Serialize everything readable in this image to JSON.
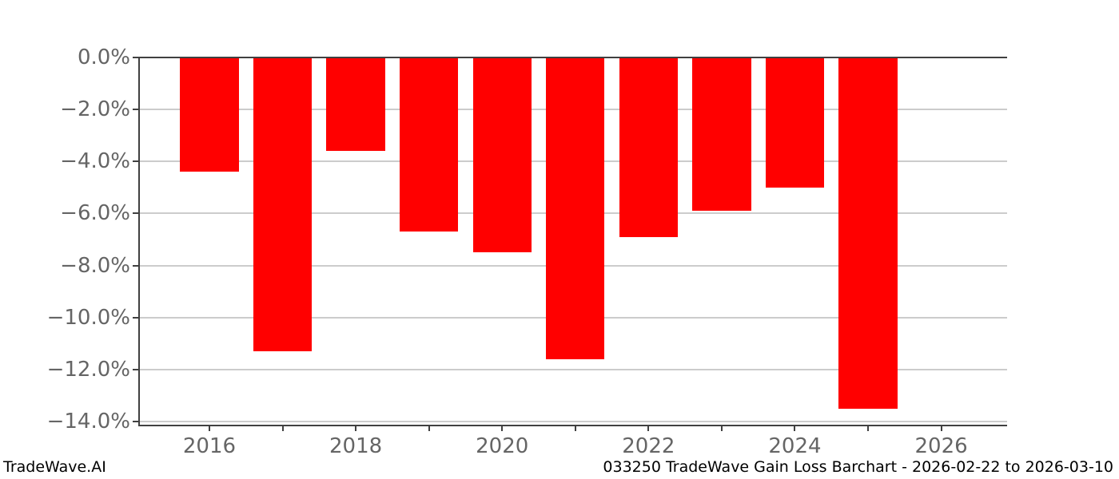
{
  "footer": {
    "brand": "TradeWave.AI",
    "title": "033250 TradeWave Gain Loss Barchart - 2026-02-22 to 2026-03-10"
  },
  "chart_data": {
    "type": "bar",
    "title": "033250 TradeWave Gain Loss Barchart - 2026-02-22 to 2026-03-10",
    "categories": [
      2016,
      2017,
      2018,
      2019,
      2020,
      2021,
      2022,
      2023,
      2024,
      2025
    ],
    "values": [
      -4.4,
      -11.3,
      -3.6,
      -6.7,
      -7.5,
      -11.6,
      -6.9,
      -5.9,
      -5.0,
      -13.5
    ],
    "xlabel": "",
    "ylabel": "",
    "xlim": [
      2015.05,
      2026.9
    ],
    "ylim": [
      -14.15,
      0
    ],
    "ytick_values": [
      0,
      -2,
      -4,
      -6,
      -8,
      -10,
      -12,
      -14
    ],
    "ytick_labels": [
      "0.0%",
      "−2.0%",
      "−4.0%",
      "−6.0%",
      "−8.0%",
      "−10.0%",
      "−12.0%",
      "−14.0%"
    ],
    "xtick_labeled_years": [
      2016,
      2018,
      2020,
      2022,
      2024,
      2026
    ],
    "xtick_all_years": [
      2016,
      2017,
      2018,
      2019,
      2020,
      2021,
      2022,
      2023,
      2024,
      2025,
      2026
    ],
    "bar_width_years": 0.8,
    "grid": "horizontal",
    "legend": "none",
    "bar_color": "#ff0000",
    "grid_color": "#cccccc",
    "axis_color": "#404040",
    "tick_label_color": "#656565",
    "footer_color": "#000000"
  }
}
